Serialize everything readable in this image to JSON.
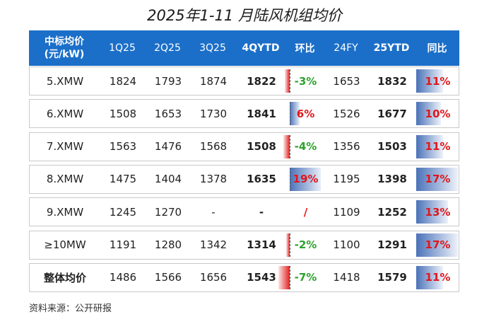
{
  "title": "2025年1-11 月陆风机组均价",
  "source": "资料来源：公开研报",
  "colors": {
    "header_bg": "#1b6fc9",
    "positive_text": "#e0161b",
    "negative_text": "#2ca32c",
    "mom_pos_bar": "#4a72b8",
    "mom_neg_bar": "#e02323",
    "yoy_bar": "#4a72b8"
  },
  "chart_data": {
    "type": "table",
    "columns": [
      "中标均价\n(元/kW)",
      "1Q25",
      "2Q25",
      "3Q25",
      "4QYTD",
      "环比",
      "24FY",
      "25YTD",
      "同比"
    ],
    "header_line1": "中标均价",
    "header_line2": "(元/kW)",
    "rows": [
      {
        "label": "5.XMW",
        "q1": "1824",
        "q2": "1793",
        "q3": "1874",
        "q4ytd": "1822",
        "mom": "-3%",
        "mom_value": -3,
        "fy24": "1653",
        "ytd25": "1832",
        "yoy": "11%",
        "yoy_value": 11
      },
      {
        "label": "6.XMW",
        "q1": "1508",
        "q2": "1653",
        "q3": "1730",
        "q4ytd": "1841",
        "mom": "6%",
        "mom_value": 6,
        "fy24": "1526",
        "ytd25": "1677",
        "yoy": "10%",
        "yoy_value": 10
      },
      {
        "label": "7.XMW",
        "q1": "1563",
        "q2": "1476",
        "q3": "1568",
        "q4ytd": "1508",
        "mom": "-4%",
        "mom_value": -4,
        "fy24": "1356",
        "ytd25": "1503",
        "yoy": "11%",
        "yoy_value": 11
      },
      {
        "label": "8.XMW",
        "q1": "1475",
        "q2": "1404",
        "q3": "1378",
        "q4ytd": "1635",
        "mom": "19%",
        "mom_value": 19,
        "fy24": "1195",
        "ytd25": "1398",
        "yoy": "17%",
        "yoy_value": 17
      },
      {
        "label": "9.XMW",
        "q1": "1245",
        "q2": "1270",
        "q3": "-",
        "q4ytd": "-",
        "mom": "/",
        "mom_value": null,
        "fy24": "1109",
        "ytd25": "1252",
        "yoy": "13%",
        "yoy_value": 13
      },
      {
        "label": "≥10MW",
        "q1": "1191",
        "q2": "1280",
        "q3": "1342",
        "q4ytd": "1314",
        "mom": "-2%",
        "mom_value": -2,
        "fy24": "1100",
        "ytd25": "1291",
        "yoy": "17%",
        "yoy_value": 17
      },
      {
        "label": "整体均价",
        "q1": "1486",
        "q2": "1566",
        "q3": "1656",
        "q4ytd": "1543",
        "mom": "-7%",
        "mom_value": -7,
        "fy24": "1418",
        "ytd25": "1579",
        "yoy": "11%",
        "yoy_value": 11,
        "bold_label": true
      }
    ]
  }
}
